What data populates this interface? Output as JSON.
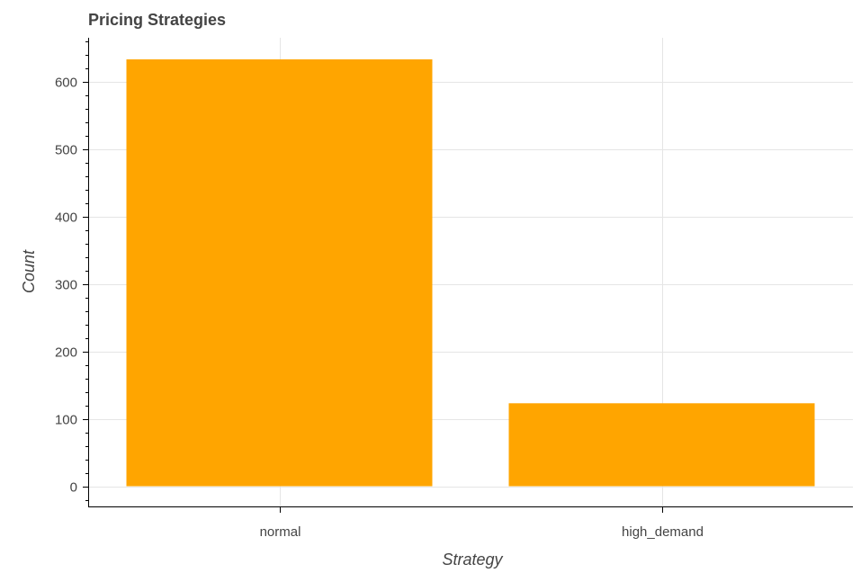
{
  "chart_data": {
    "type": "bar",
    "title": "Pricing Strategies",
    "xlabel": "Strategy",
    "ylabel": "Count",
    "categories": [
      "normal",
      "high_demand"
    ],
    "values": [
      633,
      123
    ],
    "ylim": [
      -30,
      665
    ],
    "yticks": [
      0,
      100,
      200,
      300,
      400,
      500,
      600
    ],
    "bar_color": "#ffa500",
    "grid": true
  }
}
